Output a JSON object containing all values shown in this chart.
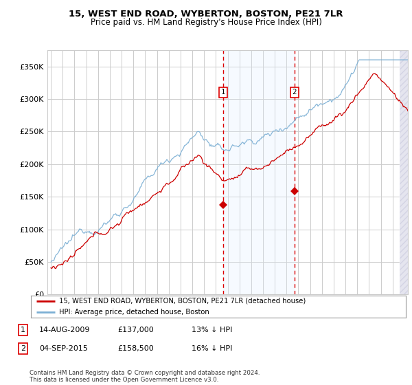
{
  "title": "15, WEST END ROAD, WYBERTON, BOSTON, PE21 7LR",
  "subtitle": "Price paid vs. HM Land Registry's House Price Index (HPI)",
  "ylabel_ticks": [
    "£0",
    "£50K",
    "£100K",
    "£150K",
    "£200K",
    "£250K",
    "£300K",
    "£350K"
  ],
  "ytick_vals": [
    0,
    50000,
    100000,
    150000,
    200000,
    250000,
    300000,
    350000
  ],
  "ylim": [
    0,
    375000
  ],
  "xlim_start": 1994.7,
  "xlim_end": 2025.3,
  "legend_line1": "15, WEST END ROAD, WYBERTON, BOSTON, PE21 7LR (detached house)",
  "legend_line2": "HPI: Average price, detached house, Boston",
  "sale1_label": "1",
  "sale1_date": "14-AUG-2009",
  "sale1_price": "£137,000",
  "sale1_hpi": "13% ↓ HPI",
  "sale2_label": "2",
  "sale2_date": "04-SEP-2015",
  "sale2_price": "£158,500",
  "sale2_hpi": "16% ↓ HPI",
  "copyright": "Contains HM Land Registry data © Crown copyright and database right 2024.\nThis data is licensed under the Open Government Licence v3.0.",
  "sale1_x": 2009.62,
  "sale2_x": 2015.67,
  "sale1_price_val": 137000,
  "sale2_price_val": 158500,
  "hpi_color": "#7bafd4",
  "price_color": "#cc0000",
  "vline_color": "#dd0000",
  "shade_color": "#ddeeff",
  "bg_color": "#ffffff",
  "grid_color": "#cccccc"
}
